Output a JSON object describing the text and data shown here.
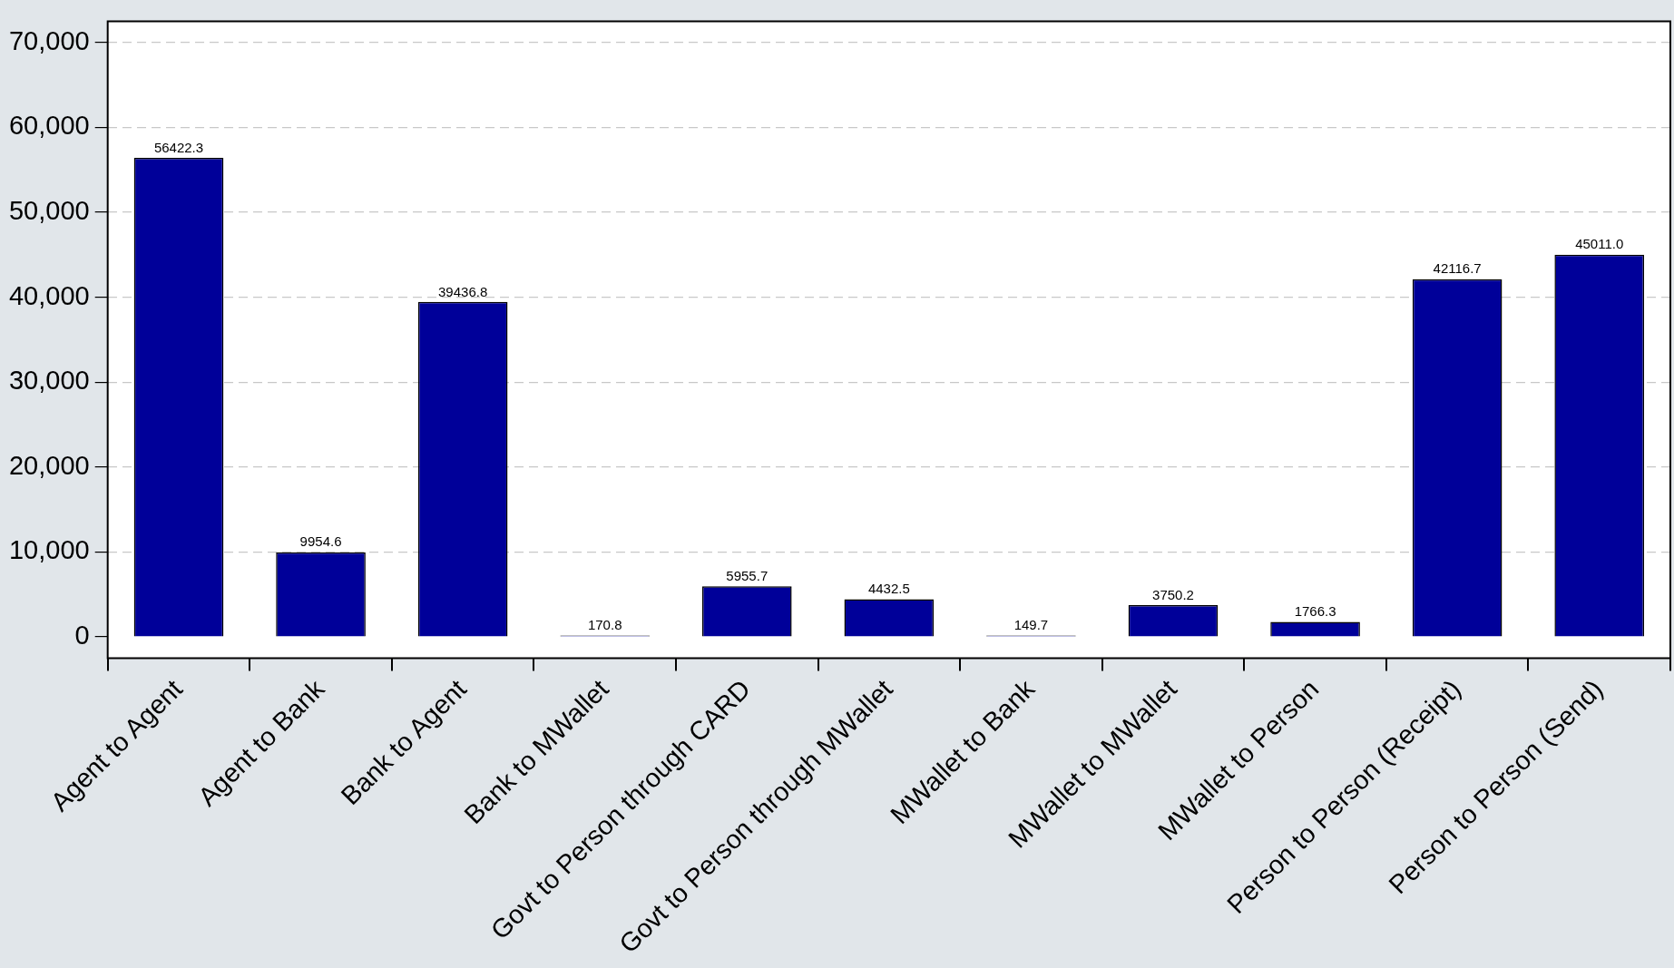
{
  "chart_data": {
    "type": "bar",
    "categories": [
      "Agent to Agent",
      "Agent to Bank",
      "Bank to Agent",
      "Bank to MWallet",
      "Govt to Person through CARD",
      "Govt to Person through MWallet",
      "MWallet to Bank",
      "MWallet to MWallet",
      "MWallet to Person",
      "Person to Person (Receipt)",
      "Person to Person (Send)"
    ],
    "values": [
      56422.3,
      9954.6,
      39436.8,
      170.8,
      5955.7,
      4432.5,
      149.7,
      3750.2,
      1766.3,
      42116.7,
      45011.0
    ],
    "value_labels": [
      "56422.3",
      "9954.6",
      "39436.8",
      "170.8",
      "5955.7",
      "4432.5",
      "149.7",
      "3750.2",
      "1766.3",
      "42116.7",
      "45011.0"
    ],
    "color": "#000099",
    "ylim": [
      -2500,
      72500
    ],
    "yticks": [
      {
        "value": 0,
        "label": "0"
      },
      {
        "value": 10000,
        "label": "10,000"
      },
      {
        "value": 20000,
        "label": "20,000"
      },
      {
        "value": 30000,
        "label": "30,000"
      },
      {
        "value": 40000,
        "label": "40,000"
      },
      {
        "value": 50000,
        "label": "50,000"
      },
      {
        "value": 60000,
        "label": "60,000"
      },
      {
        "value": 70000,
        "label": "70,000"
      }
    ],
    "grid": "y",
    "legend": false
  }
}
